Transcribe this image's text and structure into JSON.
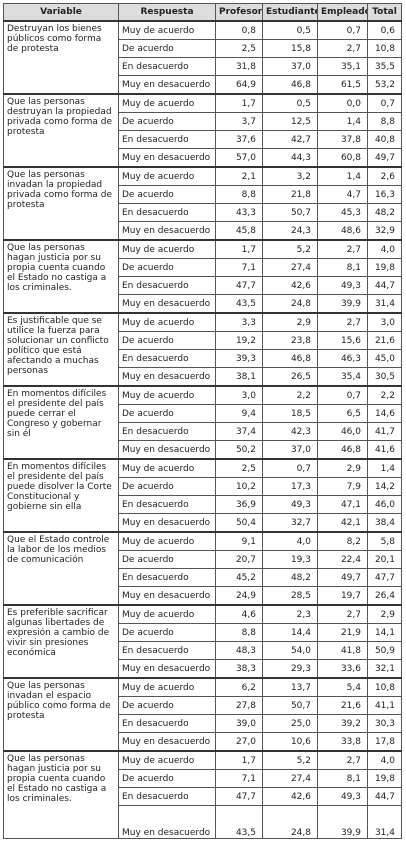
{
  "table": {
    "header": [
      "Variable",
      "Respuesta",
      "Profesor",
      "Estudiante",
      "Empleado",
      "Total"
    ],
    "groups": [
      {
        "variable": "Destruyan los bienes públicos como forma de protesta",
        "rows": [
          [
            "Muy de acuerdo",
            "0,8",
            "0,5",
            "0,7",
            "0,6"
          ],
          [
            "De acuerdo",
            "2,5",
            "15,8",
            "2,7",
            "10,8"
          ],
          [
            "En desacuerdo",
            "31,8",
            "37,0",
            "35,1",
            "35,5"
          ],
          [
            "Muy en desacuerdo",
            "64,9",
            "46,8",
            "61,5",
            "53,2"
          ]
        ]
      },
      {
        "variable": "Que las personas destruyan la propiedad privada como forma de protesta",
        "rows": [
          [
            "Muy de acuerdo",
            "1,7",
            "0,5",
            "0,0",
            "0,7"
          ],
          [
            "De acuerdo",
            "3,7",
            "12,5",
            "1,4",
            "8,8"
          ],
          [
            "En desacuerdo",
            "37,6",
            "42,7",
            "37,8",
            "40,8"
          ],
          [
            "Muy en desacuerdo",
            "57,0",
            "44,3",
            "60,8",
            "49,7"
          ]
        ]
      },
      {
        "variable": "Que las personas invadan la propiedad privada como forma de protesta",
        "rows": [
          [
            "Muy de acuerdo",
            "2,1",
            "3,2",
            "1,4",
            "2,6"
          ],
          [
            "De acuerdo",
            "8,8",
            "21,8",
            "4,7",
            "16,3"
          ],
          [
            "En desacuerdo",
            "43,3",
            "50,7",
            "45,3",
            "48,2"
          ],
          [
            "Muy en desacuerdo",
            "45,8",
            "24,3",
            "48,6",
            "32,9"
          ]
        ]
      },
      {
        "variable": "Que las personas hagan justicia por su propia cuenta cuando el Estado no castiga a los criminales.",
        "rows": [
          [
            "Muy de acuerdo",
            "1,7",
            "5,2",
            "2,7",
            "4,0"
          ],
          [
            "De acuerdo",
            "7,1",
            "27,4",
            "8,1",
            "19,8"
          ],
          [
            "En desacuerdo",
            "47,7",
            "42,6",
            "49,3",
            "44,7"
          ],
          [
            "Muy en desacuerdo",
            "43,5",
            "24,8",
            "39,9",
            "31,4"
          ]
        ]
      },
      {
        "variable": "Es justificable que se utilice la fuerza para solucionar un conflicto político que está afectando a muchas personas",
        "rows": [
          [
            "Muy de acuerdo",
            "3,3",
            "2,9",
            "2,7",
            "3,0"
          ],
          [
            "De acuerdo",
            "19,2",
            "23,8",
            "15,6",
            "21,6"
          ],
          [
            "En desacuerdo",
            "39,3",
            "46,8",
            "46,3",
            "45,0"
          ],
          [
            "Muy en desacuerdo",
            "38,1",
            "26,5",
            "35,4",
            "30,5"
          ]
        ]
      },
      {
        "variable": "En momentos difíciles el presidente del país puede cerrar el Congreso y gobernar sin él",
        "rows": [
          [
            "Muy de acuerdo",
            "3,0",
            "2,2",
            "0,7",
            "2,2"
          ],
          [
            "De acuerdo",
            "9,4",
            "18,5",
            "6,5",
            "14,6"
          ],
          [
            "En desacuerdo",
            "37,4",
            "42,3",
            "46,0",
            "41,7"
          ],
          [
            "Muy en desacuerdo",
            "50,2",
            "37,0",
            "46,8",
            "41,6"
          ]
        ]
      },
      {
        "variable": "En momentos difíciles el presidente del país puede disolver la Corte Constitucional y gobierne sin ella",
        "rows": [
          [
            "Muy de acuerdo",
            "2,5",
            "0,7",
            "2,9",
            "1,4"
          ],
          [
            "De acuerdo",
            "10,2",
            "17,3",
            "7,9",
            "14,2"
          ],
          [
            "En desacuerdo",
            "36,9",
            "49,3",
            "47,1",
            "46,0"
          ],
          [
            "Muy en desacuerdo",
            "50,4",
            "32,7",
            "42,1",
            "38,4"
          ]
        ]
      },
      {
        "variable": "Que el Estado controle la labor de los medios de comunicación",
        "rows": [
          [
            "Muy de acuerdo",
            "9,1",
            "4,0",
            "8,2",
            "5,8"
          ],
          [
            "De acuerdo",
            "20,7",
            "19,3",
            "22,4",
            "20,1"
          ],
          [
            "En desacuerdo",
            "45,2",
            "48,2",
            "49,7",
            "47,7"
          ],
          [
            "Muy en desacuerdo",
            "24,9",
            "28,5",
            "19,7",
            "26,4"
          ]
        ]
      },
      {
        "variable": "Es preferible sacrificar algunas libertades de expresión a cambio de vivir sin presiones económica",
        "rows": [
          [
            "Muy de acuerdo",
            "4,6",
            "2,3",
            "2,7",
            "2,9"
          ],
          [
            "De acuerdo",
            "8,8",
            "14,4",
            "21,9",
            "14,1"
          ],
          [
            "En desacuerdo",
            "48,3",
            "54,0",
            "41,8",
            "50,9"
          ],
          [
            "Muy en desacuerdo",
            "38,3",
            "29,3",
            "33,6",
            "32,1"
          ]
        ]
      },
      {
        "variable": "Que las personas invadan el espacio público como forma de protesta",
        "rows": [
          [
            "Muy de acuerdo",
            "6,2",
            "13,7",
            "5,4",
            "10,8"
          ],
          [
            "De acuerdo",
            "27,8",
            "50,7",
            "21,6",
            "41,1"
          ],
          [
            "En desacuerdo",
            "39,0",
            "25,0",
            "39,2",
            "30,3"
          ],
          [
            "Muy en desacuerdo",
            "27,0",
            "10,6",
            "33,8",
            "17,8"
          ]
        ]
      },
      {
        "variable": "Que las personas hagan justicia por su propia cuenta cuando el Estado no castiga a los criminales.",
        "rows": [
          [
            "Muy de acuerdo",
            "1,7",
            "5,2",
            "2,7",
            "4,0"
          ],
          [
            "De acuerdo",
            "7,1",
            "27,4",
            "8,1",
            "19,8"
          ],
          [
            "En desacuerdo",
            "47,7",
            "42,6",
            "49,3",
            "44,7"
          ],
          [
            "Muy en desacuerdo",
            "43,5",
            "24,8",
            "39,9",
            "31,4"
          ]
        ]
      }
    ]
  }
}
